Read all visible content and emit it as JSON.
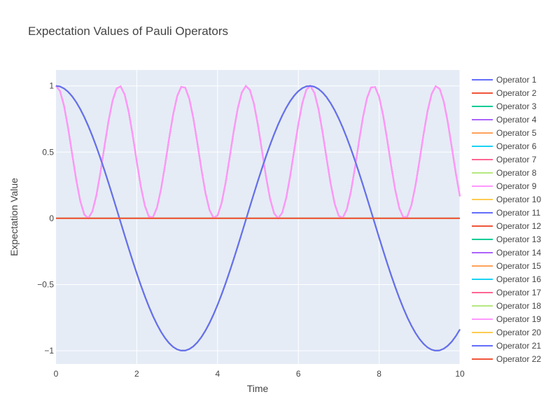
{
  "chart_data": {
    "type": "line",
    "title": "Expectation Values of Pauli Operators",
    "xlabel": "Time",
    "ylabel": "Expectation Value",
    "xlim": [
      0,
      10
    ],
    "ylim": [
      -1.1,
      1.12
    ],
    "xticks": [
      0,
      2,
      4,
      6,
      8,
      10
    ],
    "xtick_labels": [
      "0",
      "2",
      "4",
      "6",
      "8",
      "10"
    ],
    "yticks": [
      -1,
      -0.5,
      0,
      0.5,
      1
    ],
    "ytick_labels": [
      "−1",
      "−0.5",
      "0",
      "0.5",
      "1"
    ],
    "grid": true,
    "legend_position": "right",
    "series_shapes": {
      "cos": "cos(t)",
      "cos_sq": "cos(2t)^2",
      "zero": "0"
    },
    "x": [
      0,
      0.1,
      0.2,
      0.3,
      0.4,
      0.5,
      0.6,
      0.7,
      0.8,
      0.9,
      1.0,
      1.1,
      1.2,
      1.3,
      1.4,
      1.5,
      1.6,
      1.7,
      1.8,
      1.9,
      2.0,
      2.1,
      2.2,
      2.3,
      2.4,
      2.5,
      2.6,
      2.7,
      2.8,
      2.9,
      3.0,
      3.1,
      3.2,
      3.3,
      3.4,
      3.5,
      3.6,
      3.7,
      3.8,
      3.9,
      4.0,
      4.1,
      4.2,
      4.3,
      4.4,
      4.5,
      4.6,
      4.7,
      4.8,
      4.9,
      5.0,
      5.1,
      5.2,
      5.3,
      5.4,
      5.5,
      5.6,
      5.7,
      5.8,
      5.9,
      6.0,
      6.1,
      6.2,
      6.3,
      6.4,
      6.5,
      6.6,
      6.7,
      6.8,
      6.9,
      7.0,
      7.1,
      7.2,
      7.3,
      7.4,
      7.5,
      7.6,
      7.7,
      7.8,
      7.9,
      8.0,
      8.1,
      8.2,
      8.3,
      8.4,
      8.5,
      8.6,
      8.7,
      8.8,
      8.9,
      9.0,
      9.1,
      9.2,
      9.3,
      9.4,
      9.5,
      9.6,
      9.7,
      9.8,
      9.9,
      10.0
    ],
    "series": [
      {
        "name": "Operator 1",
        "color": "#636EFA",
        "shape": "cos"
      },
      {
        "name": "Operator 2",
        "color": "#EF553B",
        "shape": "cos"
      },
      {
        "name": "Operator 3",
        "color": "#00CC96",
        "shape": "cos"
      },
      {
        "name": "Operator 4",
        "color": "#AB63FA",
        "shape": "cos_sq"
      },
      {
        "name": "Operator 5",
        "color": "#FFA15A",
        "shape": "cos"
      },
      {
        "name": "Operator 6",
        "color": "#19D3F3",
        "shape": "zero"
      },
      {
        "name": "Operator 7",
        "color": "#FF6692",
        "shape": "cos_sq"
      },
      {
        "name": "Operator 8",
        "color": "#B6E880",
        "shape": "zero"
      },
      {
        "name": "Operator 9",
        "color": "#FF97FF",
        "shape": "cos_sq"
      },
      {
        "name": "Operator 10",
        "color": "#FECB52",
        "shape": "zero"
      },
      {
        "name": "Operator 11",
        "color": "#636EFA",
        "shape": "cos"
      },
      {
        "name": "Operator 12",
        "color": "#EF553B",
        "shape": "zero"
      },
      {
        "name": "Operator 13",
        "color": "#00CC96",
        "shape": "cos"
      },
      {
        "name": "Operator 14",
        "color": "#AB63FA",
        "shape": "zero"
      },
      {
        "name": "Operator 15",
        "color": "#FFA15A",
        "shape": "cos"
      },
      {
        "name": "Operator 16",
        "color": "#19D3F3",
        "shape": "zero"
      },
      {
        "name": "Operator 17",
        "color": "#FF6692",
        "shape": "cos_sq"
      },
      {
        "name": "Operator 18",
        "color": "#B6E880",
        "shape": "zero"
      },
      {
        "name": "Operator 19",
        "color": "#FF97FF",
        "shape": "cos_sq"
      },
      {
        "name": "Operator 20",
        "color": "#FECB52",
        "shape": "zero"
      },
      {
        "name": "Operator 21",
        "color": "#636EFA",
        "shape": "cos"
      },
      {
        "name": "Operator 22",
        "color": "#EF553B",
        "shape": "zero"
      }
    ]
  },
  "colors": {
    "plot_background": "#E5ECF6",
    "gridline": "#ffffff",
    "text": "#444444"
  }
}
